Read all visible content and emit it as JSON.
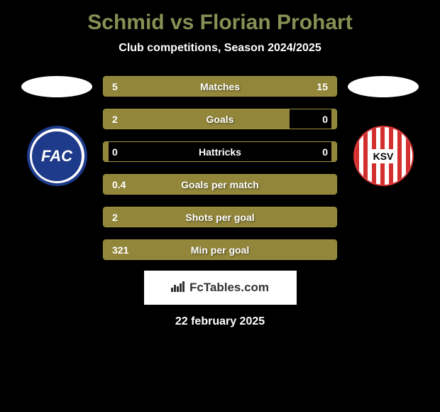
{
  "title": "Schmid vs Florian Prohart",
  "subtitle": "Club competitions, Season 2024/2025",
  "player_left": {
    "badge_text": "FAC",
    "badge_bg": "#1e3a8a",
    "badge_border": "#1e3a8a"
  },
  "player_right": {
    "badge_text": "KSV",
    "badge_bg": "#ffffff",
    "badge_stripe": "#d32f2f"
  },
  "stats": [
    {
      "label": "Matches",
      "left_value": "5",
      "right_value": "15",
      "left_pct": 25,
      "right_pct": 75
    },
    {
      "label": "Goals",
      "left_value": "2",
      "right_value": "0",
      "left_pct": 80,
      "right_pct": 2
    },
    {
      "label": "Hattricks",
      "left_value": "0",
      "right_value": "0",
      "left_pct": 2,
      "right_pct": 2
    },
    {
      "label": "Goals per match",
      "left_value": "0.4",
      "right_value": "",
      "left_pct": 100,
      "right_pct": 0
    },
    {
      "label": "Shots per goal",
      "left_value": "2",
      "right_value": "",
      "left_pct": 100,
      "right_pct": 0
    },
    {
      "label": "Min per goal",
      "left_value": "321",
      "right_value": "",
      "left_pct": 100,
      "right_pct": 0
    }
  ],
  "brand": {
    "name": "FcTables.com",
    "icon": "📊"
  },
  "date": "22 february 2025",
  "colors": {
    "title": "#888f55",
    "bar_fill": "#92863a",
    "bar_border": "#a09340",
    "background": "#000000",
    "text": "#ffffff"
  }
}
